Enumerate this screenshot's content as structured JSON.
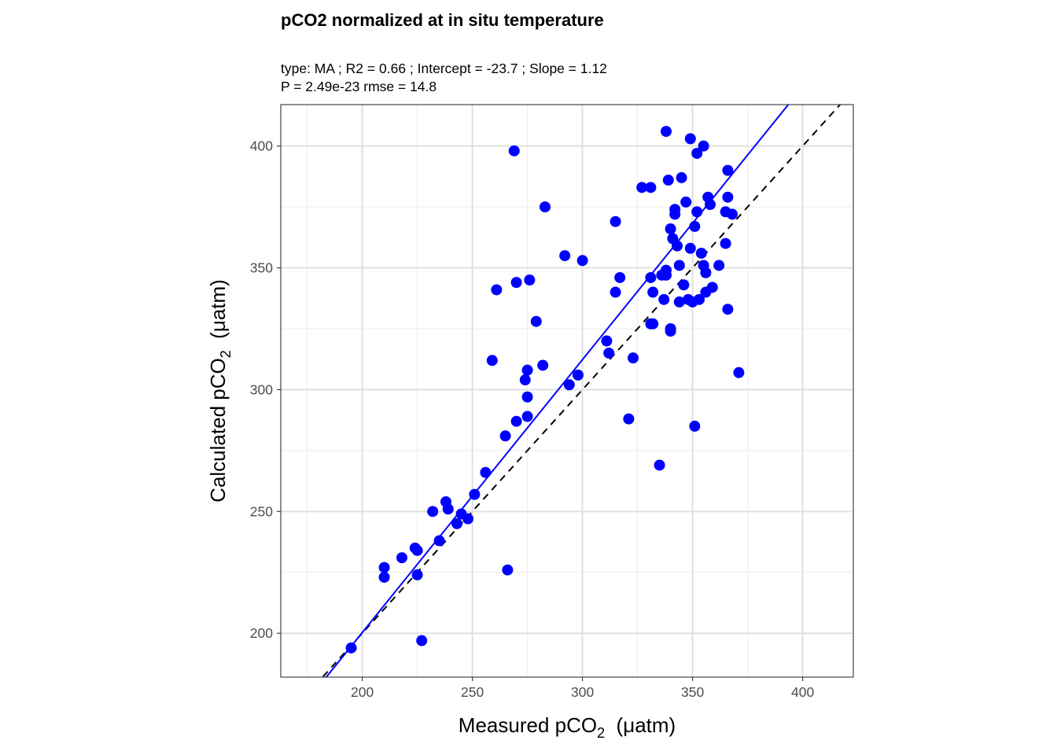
{
  "chart_data": {
    "type": "scatter",
    "title": "pCO2 normalized at in situ temperature",
    "subtitle_line1": "type:  MA ; R2 =  0.66 ; Intercept = -23.7 ; Slope = 1.12",
    "subtitle_line2": "P = 2.49e-23 rmse = 14.8",
    "xlabel": {
      "prefix": "Measured pCO",
      "sub": "2",
      "suffix": "  (μatm)"
    },
    "ylabel": {
      "prefix": "Calculated pCO",
      "sub": "2",
      "suffix": "  (μatm)"
    },
    "xlim": [
      163,
      423
    ],
    "ylim": [
      182,
      417
    ],
    "xticks": [
      200,
      250,
      300,
      350,
      400
    ],
    "yticks": [
      200,
      250,
      300,
      350,
      400
    ],
    "grid": true,
    "point_color": "#0000ff",
    "fit_line": {
      "intercept": -23.7,
      "slope": 1.12,
      "color": "#0000ff"
    },
    "identity_line": {
      "intercept": 0,
      "slope": 1,
      "color": "#000000",
      "style": "dashed"
    },
    "points": [
      [
        195,
        194
      ],
      [
        210,
        227
      ],
      [
        210,
        223
      ],
      [
        218,
        231
      ],
      [
        224,
        235
      ],
      [
        225,
        234
      ],
      [
        225,
        224
      ],
      [
        227,
        197
      ],
      [
        232,
        250
      ],
      [
        235,
        238
      ],
      [
        238,
        254
      ],
      [
        239,
        251
      ],
      [
        243,
        245
      ],
      [
        245,
        249
      ],
      [
        248,
        247
      ],
      [
        251,
        257
      ],
      [
        256,
        266
      ],
      [
        259,
        312
      ],
      [
        261,
        341
      ],
      [
        265,
        281
      ],
      [
        266,
        226
      ],
      [
        269,
        398
      ],
      [
        270,
        287
      ],
      [
        270,
        344
      ],
      [
        274,
        304
      ],
      [
        275,
        297
      ],
      [
        275,
        308
      ],
      [
        275,
        289
      ],
      [
        276,
        345
      ],
      [
        279,
        328
      ],
      [
        282,
        310
      ],
      [
        283,
        375
      ],
      [
        292,
        355
      ],
      [
        294,
        302
      ],
      [
        298,
        306
      ],
      [
        300,
        353
      ],
      [
        311,
        320
      ],
      [
        312,
        315
      ],
      [
        315,
        369
      ],
      [
        315,
        340
      ],
      [
        317,
        346
      ],
      [
        321,
        288
      ],
      [
        323,
        313
      ],
      [
        327,
        383
      ],
      [
        331,
        383
      ],
      [
        331,
        346
      ],
      [
        331,
        327
      ],
      [
        332,
        340
      ],
      [
        332,
        327
      ],
      [
        335,
        269
      ],
      [
        336,
        347
      ],
      [
        337,
        337
      ],
      [
        338,
        349
      ],
      [
        338,
        347
      ],
      [
        338,
        406
      ],
      [
        339,
        386
      ],
      [
        340,
        366
      ],
      [
        340,
        324
      ],
      [
        341,
        362
      ],
      [
        342,
        372
      ],
      [
        342,
        374
      ],
      [
        343,
        359
      ],
      [
        344,
        336
      ],
      [
        344,
        351
      ],
      [
        345,
        387
      ],
      [
        346,
        343
      ],
      [
        347,
        377
      ],
      [
        348,
        337
      ],
      [
        349,
        358
      ],
      [
        349,
        403
      ],
      [
        350,
        336
      ],
      [
        351,
        367
      ],
      [
        351,
        285
      ],
      [
        352,
        373
      ],
      [
        352,
        397
      ],
      [
        353,
        337
      ],
      [
        354,
        356
      ],
      [
        355,
        351
      ],
      [
        355,
        400
      ],
      [
        356,
        340
      ],
      [
        356,
        348
      ],
      [
        357,
        379
      ],
      [
        358,
        376
      ],
      [
        359,
        342
      ],
      [
        362,
        351
      ],
      [
        365,
        360
      ],
      [
        365,
        373
      ],
      [
        366,
        390
      ],
      [
        366,
        379
      ],
      [
        366,
        333
      ],
      [
        368,
        372
      ],
      [
        371,
        307
      ],
      [
        340,
        325
      ]
    ]
  }
}
